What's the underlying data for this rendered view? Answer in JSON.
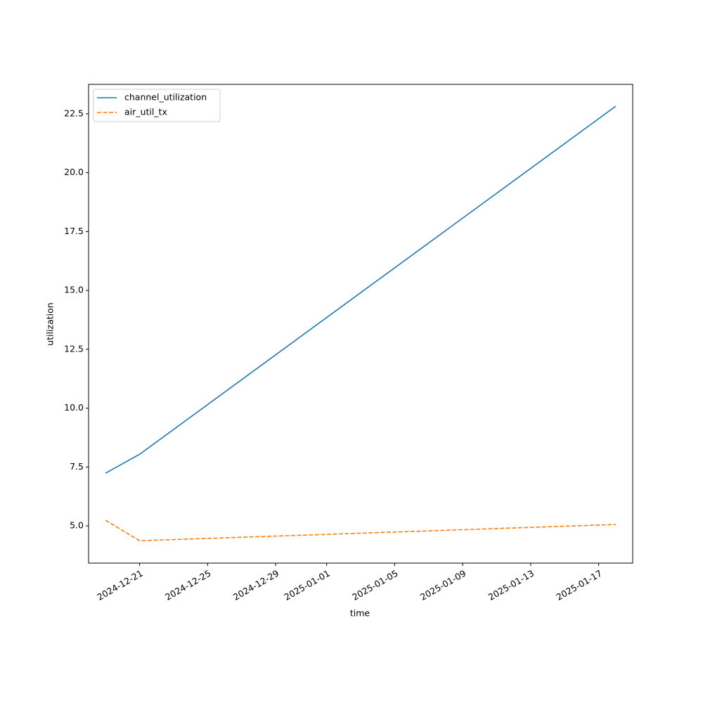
{
  "chart_data": {
    "type": "line",
    "xlabel": "time",
    "ylabel": "utilization",
    "x": [
      "2024-12-19",
      "2024-12-21",
      "2025-01-18"
    ],
    "series": [
      {
        "name": "channel_utilization",
        "color": "#1f77b4",
        "linestyle": "solid",
        "values": [
          7.24,
          8.04,
          22.82
        ]
      },
      {
        "name": "air_util_tx",
        "color": "#ff7f0e",
        "linestyle": "dashed",
        "values": [
          5.24,
          4.37,
          5.06
        ]
      }
    ],
    "xlim": [
      "2024-12-18",
      "2025-01-19"
    ],
    "xticks": [
      "2024-12-21",
      "2024-12-25",
      "2024-12-29",
      "2025-01-01",
      "2025-01-05",
      "2025-01-09",
      "2025-01-13",
      "2025-01-17"
    ],
    "ylim": [
      3.42,
      23.75
    ],
    "yticks": [
      {
        "value": 5,
        "label": "5.0"
      },
      {
        "value": 7.5,
        "label": "7.5"
      },
      {
        "value": 10,
        "label": "10.0"
      },
      {
        "value": 12.5,
        "label": "12.5"
      },
      {
        "value": 15,
        "label": "15.0"
      },
      {
        "value": 17.5,
        "label": "17.5"
      },
      {
        "value": 20,
        "label": "20.0"
      },
      {
        "value": 22.5,
        "label": "22.5"
      }
    ],
    "grid": false,
    "legend": "upper left"
  }
}
